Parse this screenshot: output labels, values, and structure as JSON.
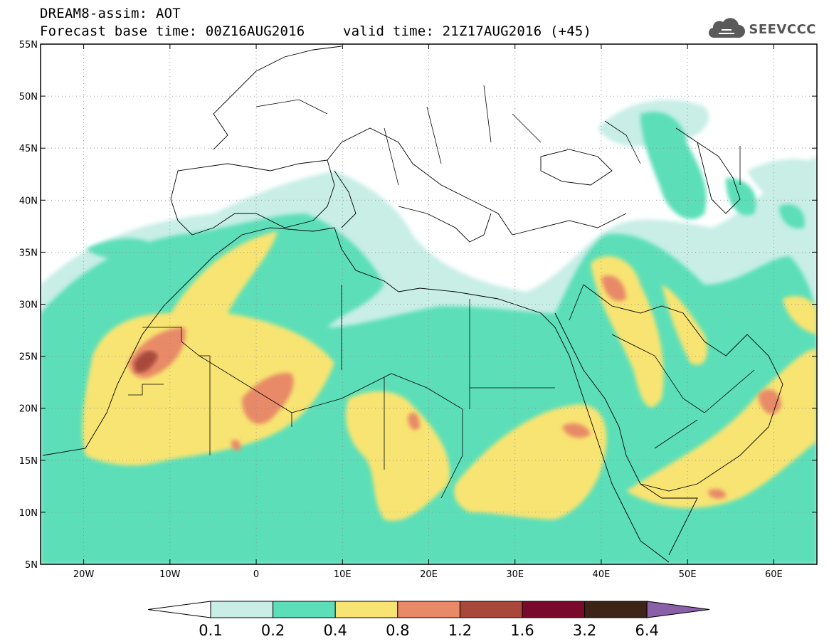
{
  "header": {
    "title_line1": "DREAM8-assim: AOT",
    "base_time": "Forecast base time: 00Z16AUG2016",
    "valid_time": "valid time: 21Z17AUG2016 (+45)",
    "logo_text": "SEEVCCC",
    "logo_icon": "cloud-icon"
  },
  "map": {
    "lon_range": [
      -25,
      65
    ],
    "lat_range": [
      5,
      55
    ],
    "lon_ticks": [
      "20W",
      "10W",
      "0",
      "10E",
      "20E",
      "30E",
      "40E",
      "50E",
      "60E"
    ],
    "lat_ticks": [
      "5N",
      "10N",
      "15N",
      "20N",
      "25N",
      "30N",
      "35N",
      "40N",
      "45N",
      "50N",
      "55N"
    ],
    "gridlines": "dotted"
  },
  "colorbar": {
    "levels": [
      "0.1",
      "0.2",
      "0.4",
      "0.8",
      "1.2",
      "1.6",
      "3.2",
      "6.4"
    ],
    "colors": [
      "#ffffff",
      "#c8eee6",
      "#5cdfb8",
      "#f8e472",
      "#e88a68",
      "#a8483a",
      "#7a0a2c",
      "#3e2416",
      "#8a60a8"
    ]
  }
}
